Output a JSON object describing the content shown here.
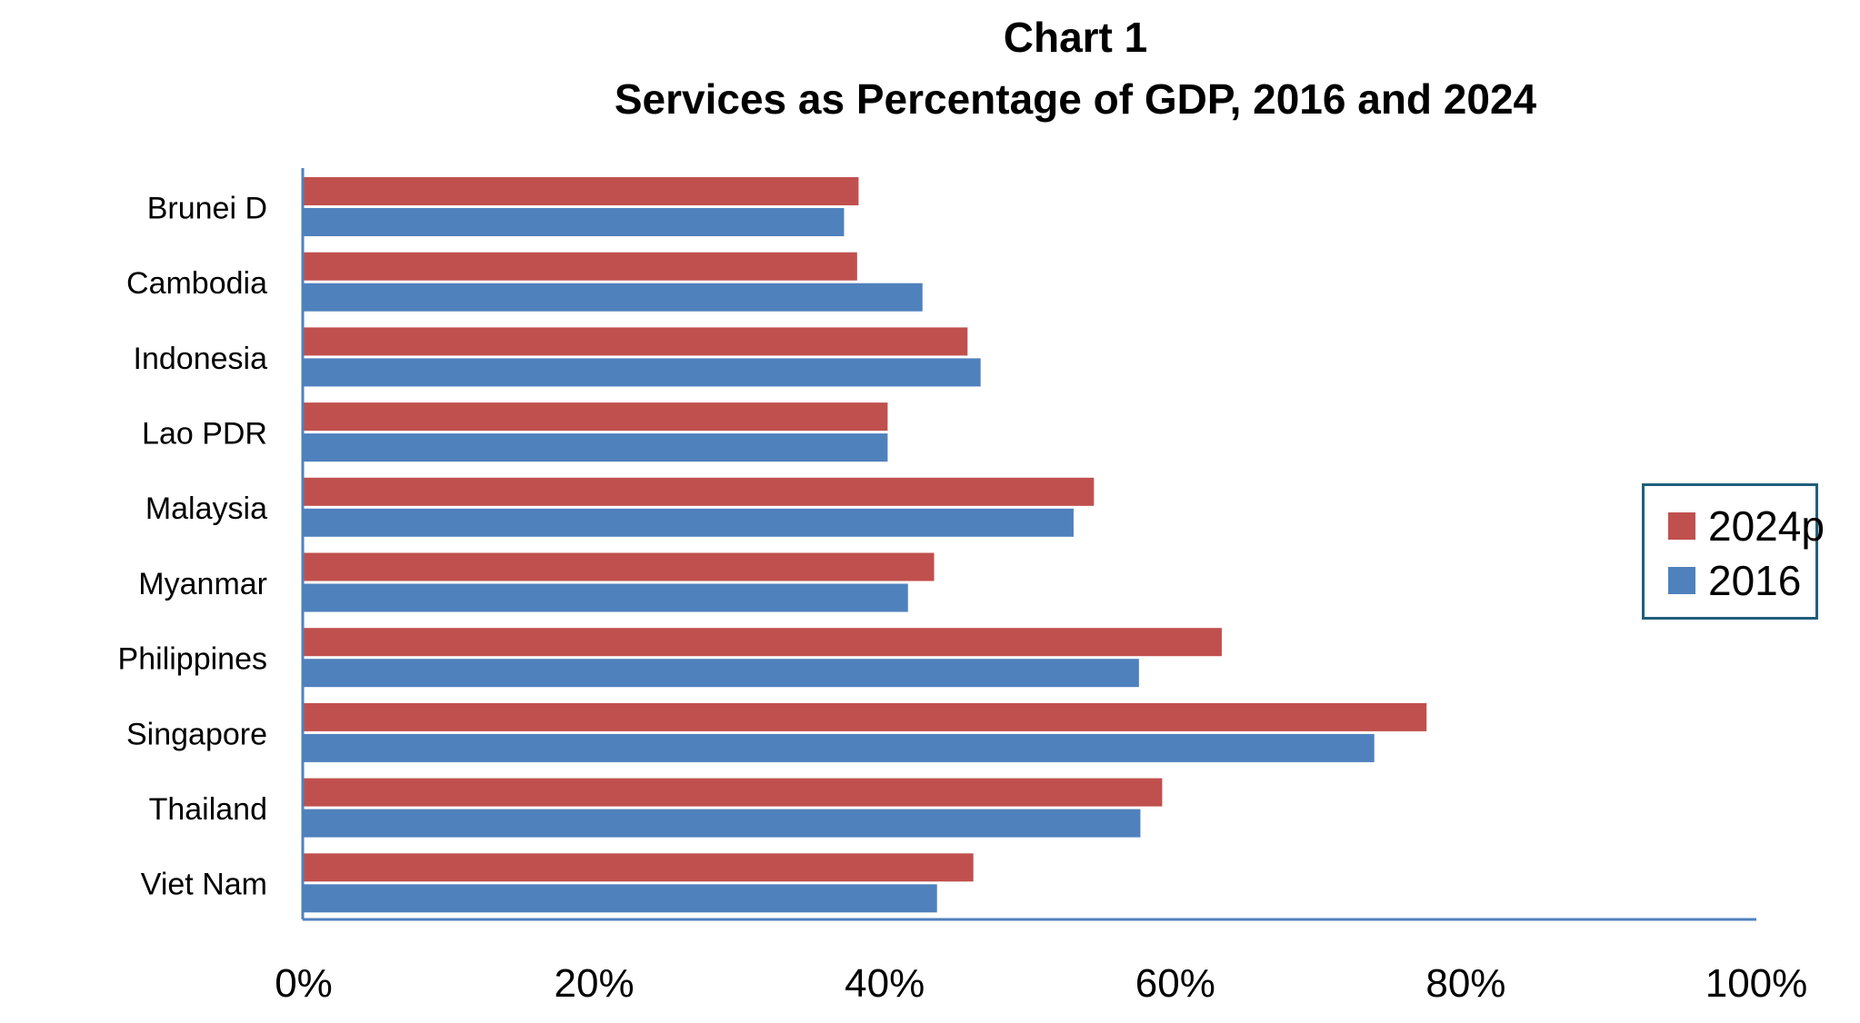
{
  "chart_data": {
    "type": "bar",
    "orientation": "horizontal",
    "title_line_1": "Chart 1",
    "title_line_2": "Services as Percentage of GDP, 2016 and 2024",
    "categories": [
      "Brunei D",
      "Cambodia",
      "Indonesia",
      "Lao PDR",
      "Malaysia",
      "Myanmar",
      "Philippines",
      "Singapore",
      "Thailand",
      "Viet Nam"
    ],
    "series": [
      {
        "name": "2024p",
        "color": "#c0504d",
        "values": [
          38.2,
          38.1,
          45.7,
          40.2,
          54.4,
          43.4,
          63.2,
          77.3,
          59.1,
          46.1
        ]
      },
      {
        "name": "2016",
        "color": "#4f81bd",
        "values": [
          37.2,
          42.6,
          46.6,
          40.2,
          53.0,
          41.6,
          57.5,
          73.7,
          57.6,
          43.6
        ]
      }
    ],
    "xlim": [
      0,
      100
    ],
    "x_ticks": [
      "0%",
      "20%",
      "40%",
      "60%",
      "80%",
      "100%"
    ],
    "xlabel": "",
    "ylabel": "",
    "grid": false,
    "legend_position": "right"
  }
}
